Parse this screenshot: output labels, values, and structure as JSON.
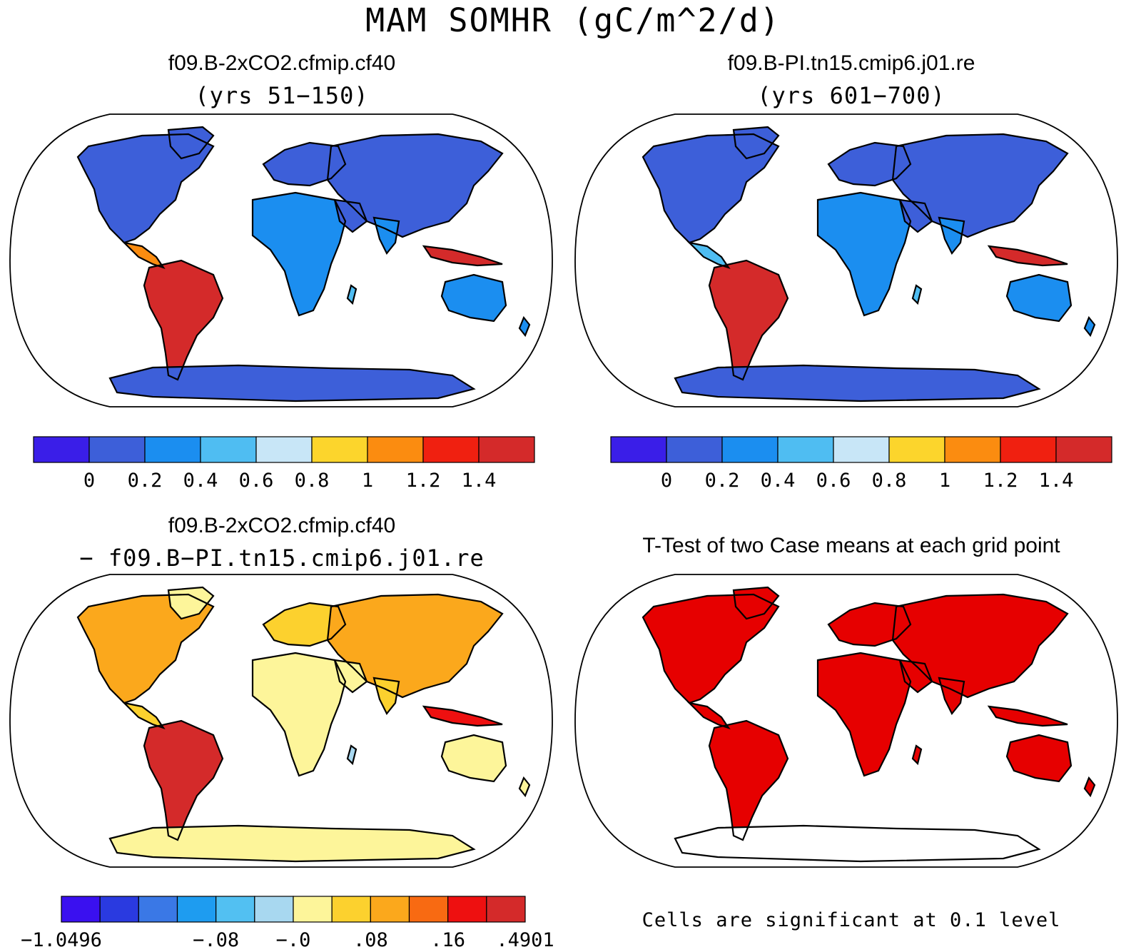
{
  "figure": {
    "title": "MAM SOMHR (gC/m^2/d)",
    "colors": {
      "land_bg": "#ffffff",
      "ocean": "#ffffff"
    }
  },
  "panels": {
    "top_left": {
      "case": "f09.B-2xCO2.cfmip.cf40",
      "subtitle": "(yrs 51−150)"
    },
    "top_right": {
      "case": "f09.B-PI.tn15.cmip6.j01.re",
      "subtitle": "(yrs 601−700)"
    },
    "bottom_left": {
      "case": "f09.B-2xCO2.cfmip.cf40",
      "subtitle": "− f09.B−PI.tn15.cmip6.j01.re"
    },
    "bottom_right": {
      "title": "T-Test of two Case means at each grid point",
      "note": "Cells are significant at 0.1 level",
      "colors": {
        "significant": "#e60000"
      }
    }
  },
  "colorbar_abs": {
    "colors": [
      "#3a1ee8",
      "#3d5fd9",
      "#1b8ef0",
      "#4fbdf2",
      "#c8e6f7",
      "#fcd52c",
      "#fb8c10",
      "#f02010",
      "#d42a2a"
    ],
    "labels": [
      "0",
      "0.2",
      "0.4",
      "0.6",
      "0.8",
      "1",
      "1.2",
      "1.4"
    ]
  },
  "colorbar_diff": {
    "colors": [
      "#3a10f0",
      "#2a3ae0",
      "#3a78e6",
      "#1e9cf0",
      "#52c0f2",
      "#a8d8f0",
      "#fdf59a",
      "#fcd12e",
      "#fba81c",
      "#f86a12",
      "#ee1010",
      "#d42a2a"
    ],
    "labels": [
      "−1.0496",
      "−.08",
      "−.0",
      ".08",
      ".16",
      ".4901"
    ]
  }
}
